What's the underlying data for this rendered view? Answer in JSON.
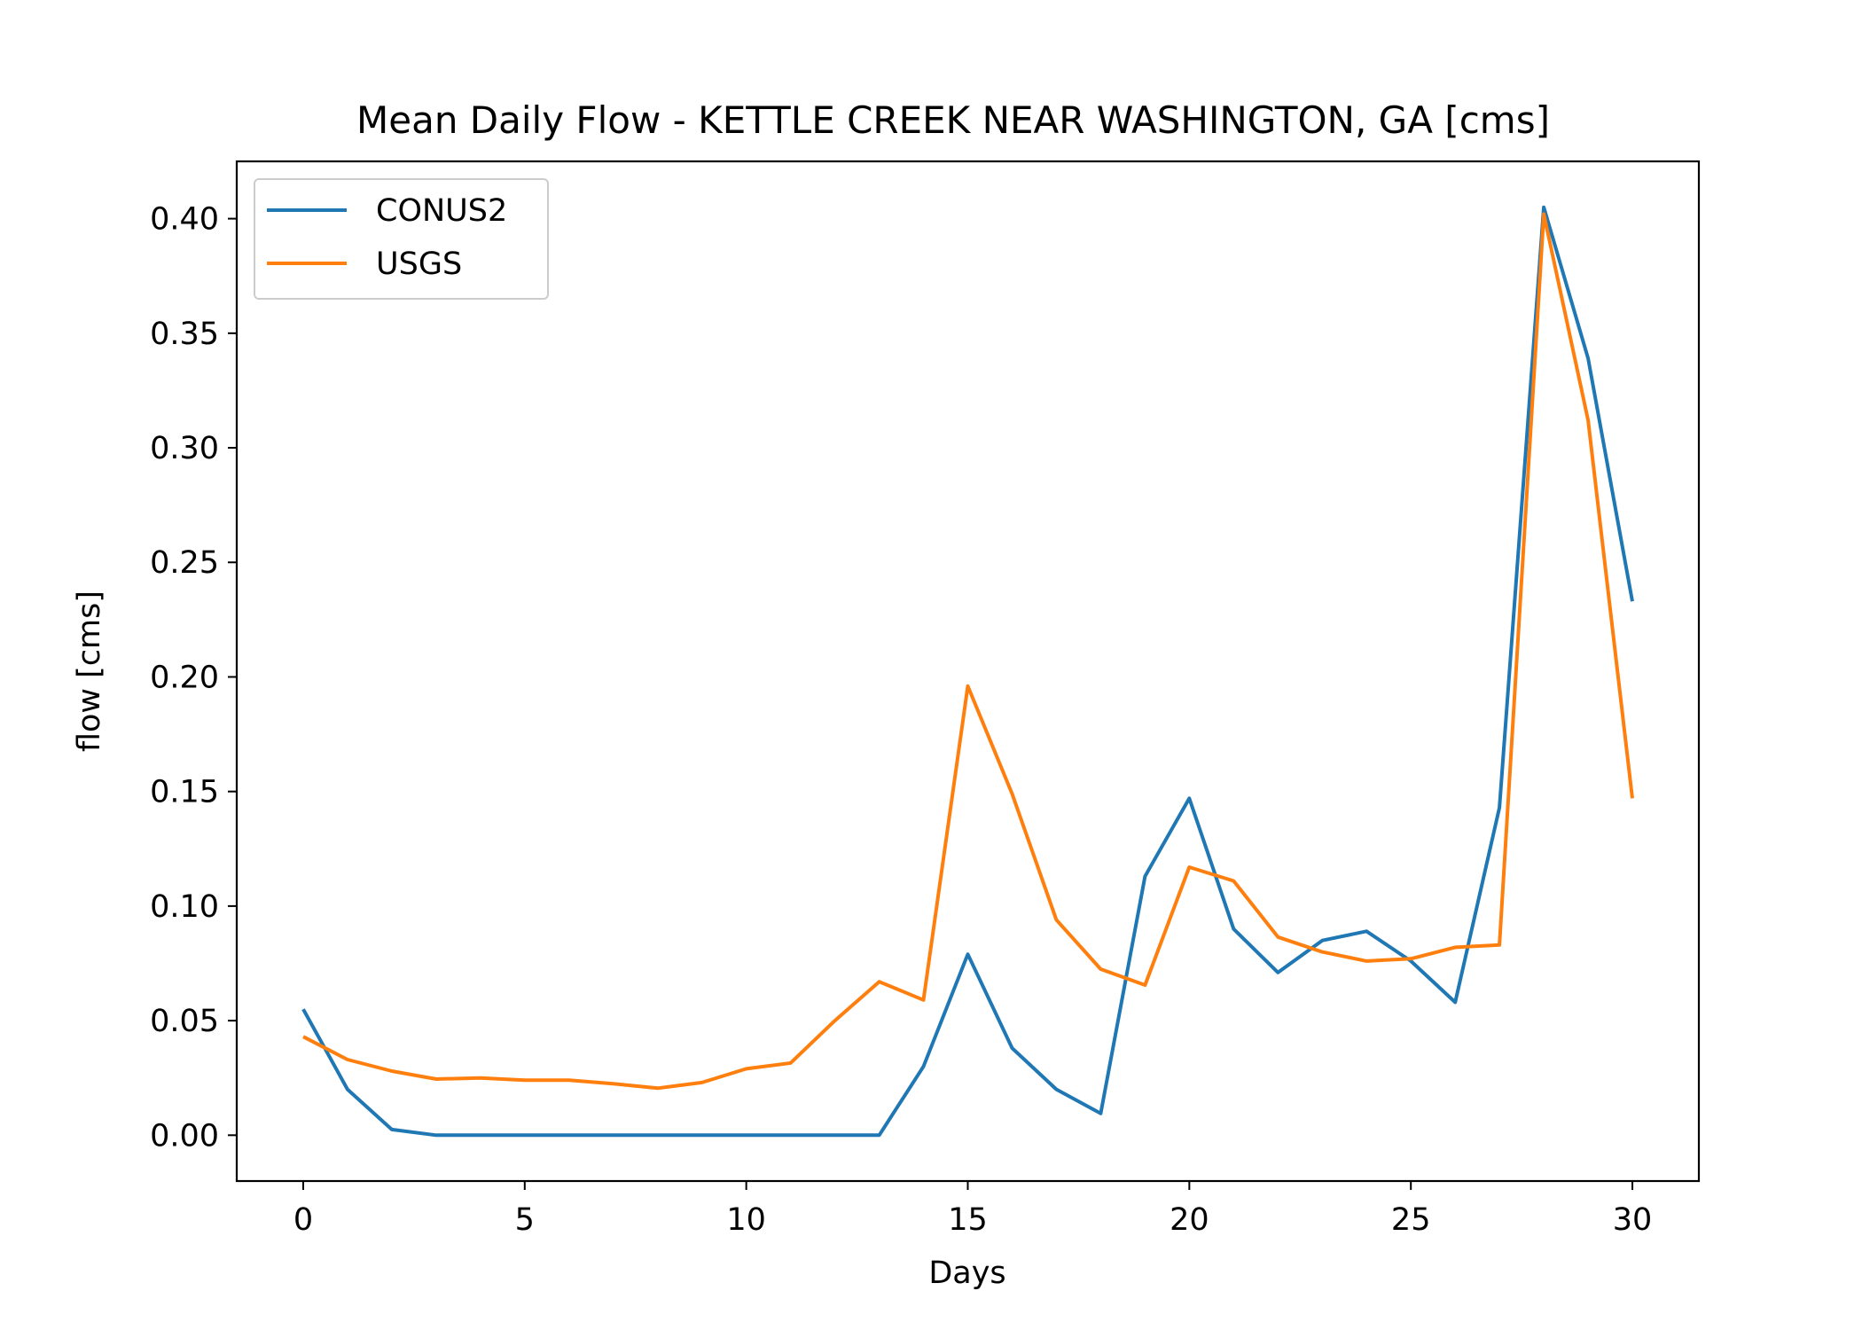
{
  "chart_data": {
    "type": "line",
    "title": "Mean Daily Flow - KETTLE CREEK NEAR WASHINGTON, GA [cms]",
    "xlabel": "Days",
    "ylabel": "flow [cms]",
    "xlim": [
      -1.5,
      31.5
    ],
    "ylim": [
      -0.02,
      0.425
    ],
    "xticks": [
      0,
      5,
      10,
      15,
      20,
      25,
      30
    ],
    "yticks": [
      0.0,
      0.05,
      0.1,
      0.15,
      0.2,
      0.25,
      0.3,
      0.35,
      0.4
    ],
    "xtick_labels": [
      "0",
      "5",
      "10",
      "15",
      "20",
      "25",
      "30"
    ],
    "ytick_labels": [
      "0.00",
      "0.05",
      "0.10",
      "0.15",
      "0.20",
      "0.25",
      "0.30",
      "0.35",
      "0.40"
    ],
    "grid": false,
    "legend_position": "top-left",
    "x": [
      0,
      1,
      2,
      3,
      4,
      5,
      6,
      7,
      8,
      9,
      10,
      11,
      12,
      13,
      14,
      15,
      16,
      17,
      18,
      19,
      20,
      21,
      22,
      23,
      24,
      25,
      26,
      27,
      28,
      29,
      30
    ],
    "series": [
      {
        "name": "CONUS2",
        "color": "#1f77b4",
        "values": [
          0.055,
          0.02,
          0.0025,
          0,
          0,
          0,
          0,
          0,
          0,
          0,
          0,
          0,
          0,
          0,
          0.03,
          0.079,
          0.038,
          0.02,
          0.0095,
          0.113,
          0.147,
          0.09,
          0.071,
          0.085,
          0.089,
          0.076,
          0.058,
          0.143,
          0.405,
          0.339,
          0.233
        ]
      },
      {
        "name": "USGS",
        "color": "#ff7f0e",
        "values": [
          0.043,
          0.033,
          0.028,
          0.0245,
          0.025,
          0.024,
          0.024,
          0.0225,
          0.0205,
          0.023,
          0.029,
          0.0315,
          0.05,
          0.067,
          0.059,
          0.196,
          0.149,
          0.094,
          0.0725,
          0.0655,
          0.117,
          0.111,
          0.0865,
          0.08,
          0.076,
          0.077,
          0.082,
          0.083,
          0.402,
          0.312,
          0.147
        ]
      }
    ]
  }
}
